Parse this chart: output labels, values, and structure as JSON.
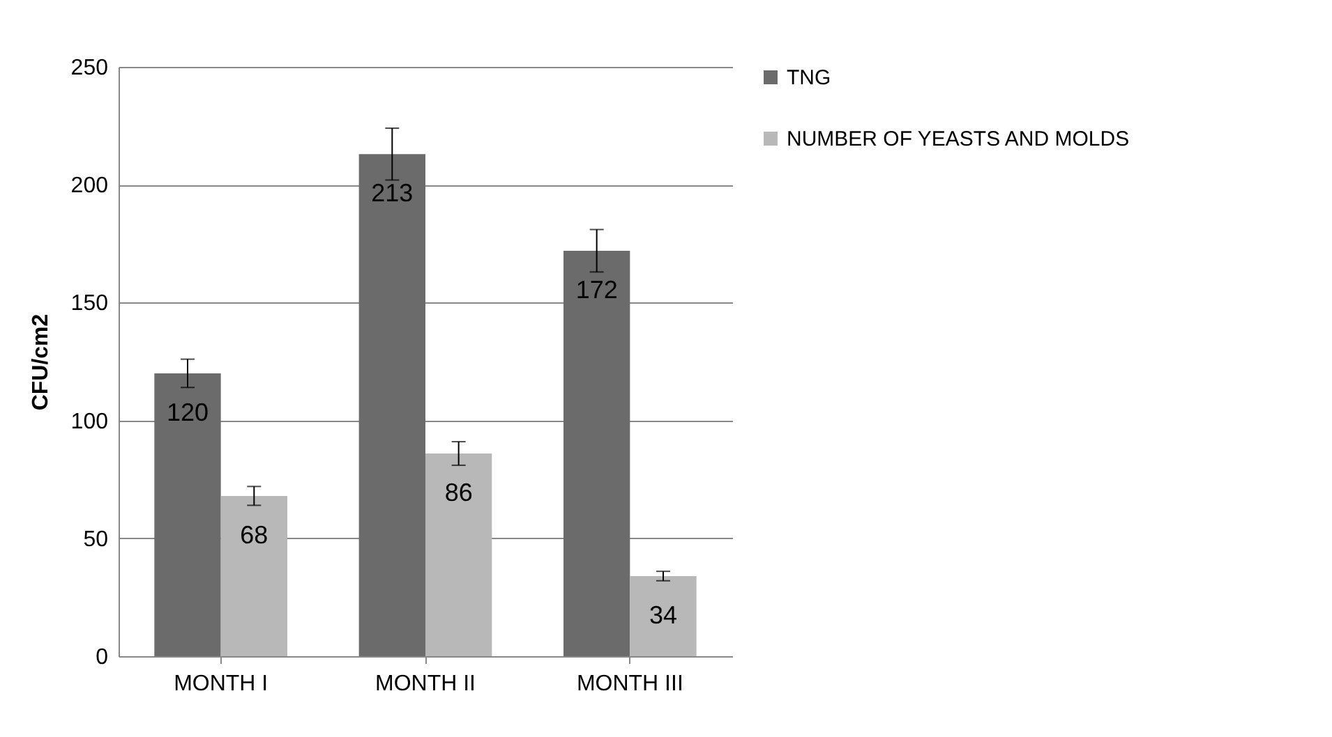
{
  "chart_data": {
    "type": "bar",
    "ylabel": "CFU/cm2",
    "categories": [
      "MONTH I",
      "MONTH II",
      "MONTH III"
    ],
    "series": [
      {
        "name": "TNG",
        "color": "#6b6b6b",
        "values": [
          120,
          213,
          172
        ],
        "errors": [
          6,
          11,
          9
        ]
      },
      {
        "name": "NUMBER OF YEASTS AND MOLDS",
        "color": "#b8b8b8",
        "values": [
          68,
          86,
          34
        ],
        "errors": [
          4,
          5,
          2
        ]
      }
    ],
    "ylim": [
      0,
      250
    ],
    "yticks": [
      0,
      50,
      100,
      150,
      200,
      250
    ],
    "grid": "y",
    "legend": "right",
    "data_labels": true
  }
}
